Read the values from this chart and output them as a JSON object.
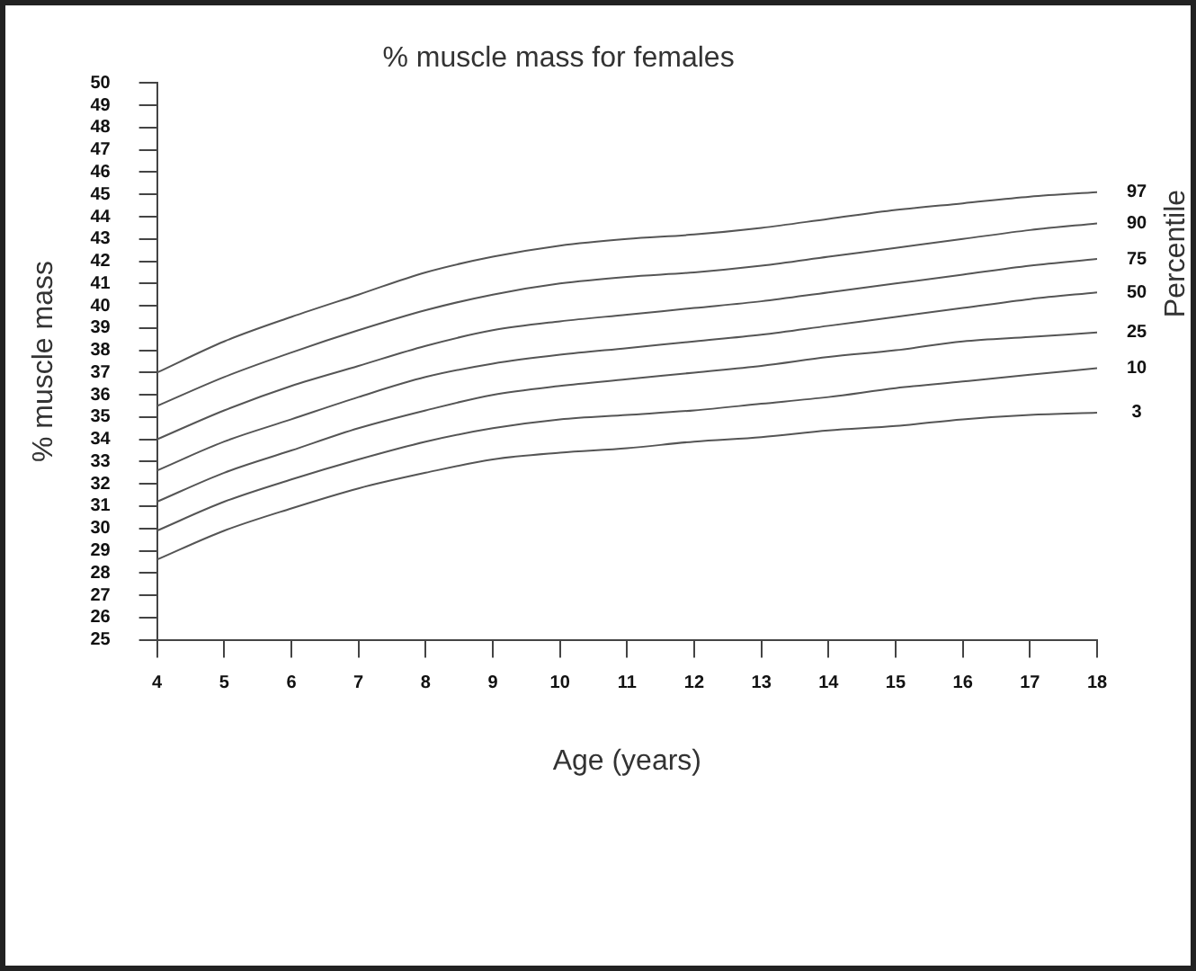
{
  "chart_data": {
    "type": "line",
    "title": "% muscle mass for females",
    "xlabel": "Age (years)",
    "ylabel": "% muscle mass",
    "y2label": "Percentile",
    "x": [
      4,
      5,
      6,
      7,
      8,
      9,
      10,
      11,
      12,
      13,
      14,
      15,
      16,
      17,
      18
    ],
    "series": [
      {
        "name": "97",
        "color": "#555555",
        "values": [
          37.0,
          38.4,
          39.5,
          40.5,
          41.5,
          42.2,
          42.7,
          43.0,
          43.2,
          43.5,
          43.9,
          44.3,
          44.6,
          44.9,
          45.1
        ]
      },
      {
        "name": "90",
        "color": "#555555",
        "values": [
          35.5,
          36.8,
          37.9,
          38.9,
          39.8,
          40.5,
          41.0,
          41.3,
          41.5,
          41.8,
          42.2,
          42.6,
          43.0,
          43.4,
          43.7
        ]
      },
      {
        "name": "75",
        "color": "#555555",
        "values": [
          34.0,
          35.3,
          36.4,
          37.3,
          38.2,
          38.9,
          39.3,
          39.6,
          39.9,
          40.2,
          40.6,
          41.0,
          41.4,
          41.8,
          42.1
        ]
      },
      {
        "name": "50",
        "color": "#555555",
        "values": [
          32.6,
          33.9,
          34.9,
          35.9,
          36.8,
          37.4,
          37.8,
          38.1,
          38.4,
          38.7,
          39.1,
          39.5,
          39.9,
          40.3,
          40.6
        ]
      },
      {
        "name": "25",
        "color": "#555555",
        "values": [
          31.2,
          32.5,
          33.5,
          34.5,
          35.3,
          36.0,
          36.4,
          36.7,
          37.0,
          37.3,
          37.7,
          38.0,
          38.4,
          38.6,
          38.8
        ]
      },
      {
        "name": "10",
        "color": "#555555",
        "values": [
          29.9,
          31.2,
          32.2,
          33.1,
          33.9,
          34.5,
          34.9,
          35.1,
          35.3,
          35.6,
          35.9,
          36.3,
          36.6,
          36.9,
          37.2
        ]
      },
      {
        "name": "3",
        "color": "#555555",
        "values": [
          28.6,
          29.9,
          30.9,
          31.8,
          32.5,
          33.1,
          33.4,
          33.6,
          33.9,
          34.1,
          34.4,
          34.6,
          34.9,
          35.1,
          35.2
        ]
      }
    ],
    "xlim": [
      4,
      18
    ],
    "xticks": [
      4,
      5,
      6,
      7,
      8,
      9,
      10,
      11,
      12,
      13,
      14,
      15,
      16,
      17,
      18
    ],
    "ylim": [
      25,
      50
    ],
    "yticks": [
      25,
      26,
      27,
      28,
      29,
      30,
      31,
      32,
      33,
      34,
      35,
      36,
      37,
      38,
      39,
      40,
      41,
      42,
      43,
      44,
      45,
      46,
      47,
      48,
      49,
      50
    ],
    "grid": false,
    "legend": false,
    "marker": "none",
    "line_style": "solid"
  }
}
